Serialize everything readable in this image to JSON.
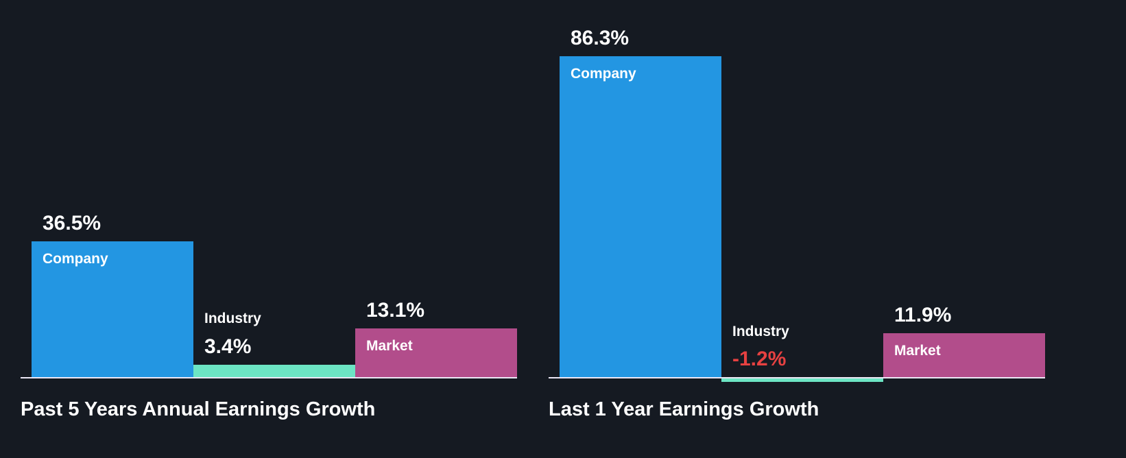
{
  "chart_data": [
    {
      "type": "bar",
      "title": "Past 5 Years Annual Earnings Growth",
      "categories": [
        "Company",
        "Industry",
        "Market"
      ],
      "values": [
        36.5,
        3.4,
        13.1
      ],
      "value_labels": [
        "36.5%",
        "3.4%",
        "13.1%"
      ],
      "unit": "percent",
      "ylim": [
        -5,
        95
      ],
      "grid": false,
      "legend": "none",
      "bar_colors": [
        "#2396e2",
        "#6ce5c4",
        "#b24d8b"
      ],
      "negative_value_color": "#e64141",
      "baseline_color": "#ece7f5",
      "background_color": "#151a22"
    },
    {
      "type": "bar",
      "title": "Last 1 Year Earnings Growth",
      "categories": [
        "Company",
        "Industry",
        "Market"
      ],
      "values": [
        86.3,
        -1.2,
        11.9
      ],
      "value_labels": [
        "86.3%",
        "-1.2%",
        "11.9%"
      ],
      "unit": "percent",
      "ylim": [
        -5,
        95
      ],
      "grid": false,
      "legend": "none",
      "bar_colors": [
        "#2396e2",
        "#6ce5c4",
        "#b24d8b"
      ],
      "negative_value_color": "#e64141",
      "baseline_color": "#ece7f5",
      "background_color": "#151a22"
    }
  ]
}
